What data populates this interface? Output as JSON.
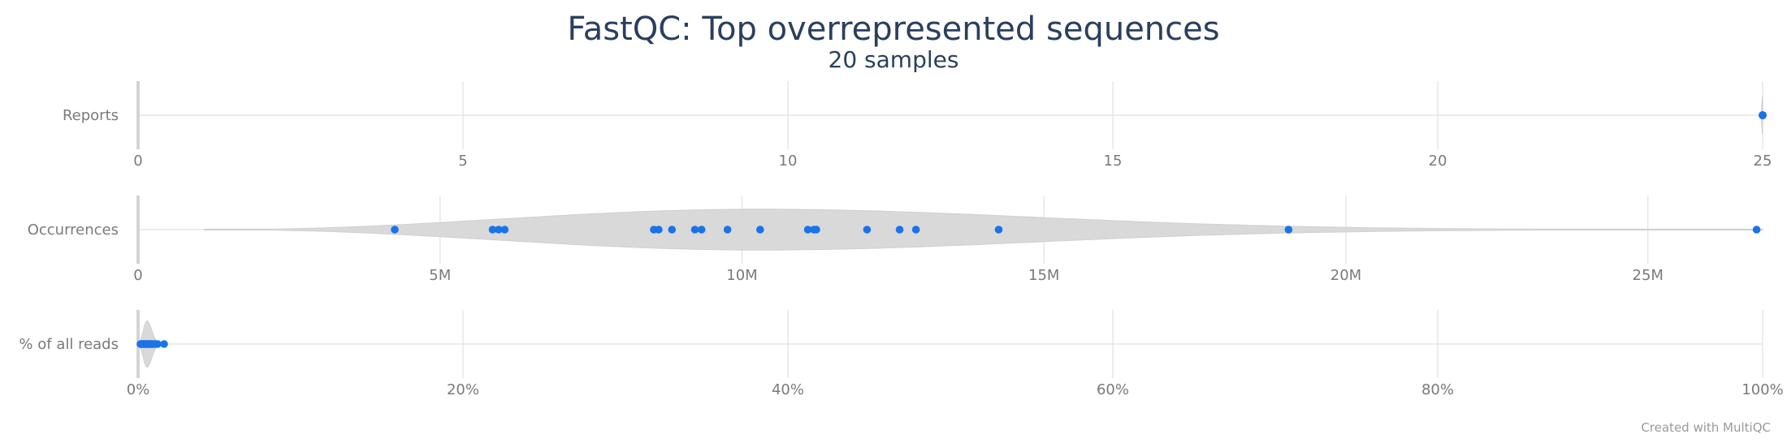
{
  "chart_data": {
    "type": "violin",
    "title": "FastQC: Top overrepresented sequences",
    "subtitle": "20 samples",
    "credit": "Created with MultiQC",
    "colors": {
      "points": "#1a73e8",
      "violin": "#d9d9d9",
      "title": "#2a3f5f"
    },
    "rows": [
      {
        "label": "Reports",
        "range": [
          0,
          25
        ],
        "ticks": [
          0,
          5,
          10,
          15,
          20,
          25
        ],
        "tick_labels": [
          "0",
          "5",
          "10",
          "15",
          "20",
          "25"
        ],
        "values": [
          25,
          25,
          25,
          25,
          25,
          25,
          25,
          25,
          25,
          25,
          25,
          25,
          25,
          25,
          25,
          25,
          25,
          25,
          25,
          25
        ],
        "violin": {
          "min": 24.97,
          "max": 25.0,
          "peak": 25.0,
          "half_width_scale": 0.55
        }
      },
      {
        "label": "Occurrences",
        "range": [
          0,
          26900000
        ],
        "ticks": [
          0,
          5000000,
          10000000,
          15000000,
          20000000,
          25000000
        ],
        "tick_labels": [
          "0",
          "5M",
          "10M",
          "15M",
          "20M",
          "25M"
        ],
        "values": [
          4250000,
          5870000,
          5970000,
          6070000,
          8540000,
          8620000,
          8840000,
          9220000,
          9330000,
          9760000,
          10300000,
          11090000,
          11190000,
          11230000,
          12070000,
          12610000,
          12880000,
          14250000,
          19050000,
          26800000
        ],
        "violin": {
          "min": 1100000,
          "max": 26900000,
          "peak": 10300000,
          "half_width_scale": 0.6
        }
      },
      {
        "label": "% of all reads",
        "range": [
          0,
          100
        ],
        "ticks": [
          0,
          20,
          40,
          60,
          80,
          100
        ],
        "tick_labels": [
          "0%",
          "20%",
          "40%",
          "60%",
          "80%",
          "100%"
        ],
        "values": [
          0.15,
          0.2,
          0.25,
          0.3,
          0.35,
          0.4,
          0.45,
          0.5,
          0.55,
          0.6,
          0.65,
          0.7,
          0.75,
          0.8,
          0.85,
          0.9,
          1.0,
          1.1,
          1.2,
          1.6
        ],
        "violin": {
          "min": 0.0,
          "max": 1.6,
          "peak": 0.55,
          "half_width_scale": 0.68
        }
      }
    ]
  }
}
